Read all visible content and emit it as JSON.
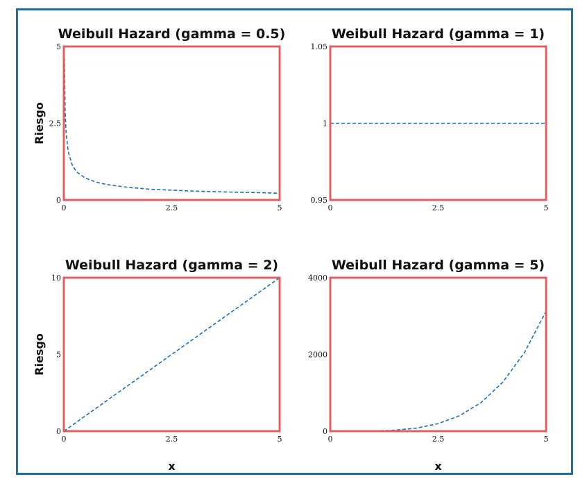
{
  "colors": {
    "frame": "#1b6fa8",
    "panel_border": "#e06060",
    "series": "#1f6fb4"
  },
  "chart_data": [
    {
      "type": "line",
      "title": "Weibull Hazard (gamma = 0.5)",
      "xlabel": "",
      "ylabel": "Riesgo",
      "xlim": [
        0,
        5
      ],
      "ylim": [
        0,
        5
      ],
      "xticks": [
        {
          "v": 0,
          "label": "0"
        },
        {
          "v": 2.5,
          "label": "2.5"
        },
        {
          "v": 5,
          "label": "5"
        }
      ],
      "yticks": [
        {
          "v": 0,
          "label": "0"
        },
        {
          "v": 2.5,
          "label": "2.5"
        },
        {
          "v": 5,
          "label": "5"
        }
      ],
      "series": [
        {
          "line_style": "dashed",
          "x": [
            0.01,
            0.03,
            0.05,
            0.1,
            0.2,
            0.3,
            0.5,
            0.75,
            1.0,
            1.5,
            2.0,
            2.5,
            3.0,
            3.5,
            4.0,
            4.5,
            5.0
          ],
          "y": [
            5.0,
            2.89,
            2.24,
            1.58,
            1.12,
            0.91,
            0.71,
            0.58,
            0.5,
            0.41,
            0.35,
            0.32,
            0.29,
            0.27,
            0.25,
            0.24,
            0.22
          ]
        }
      ]
    },
    {
      "type": "line",
      "title": "Weibull Hazard (gamma = 1)",
      "xlabel": "",
      "ylabel": "",
      "xlim": [
        0,
        5
      ],
      "ylim": [
        0.95,
        1.05
      ],
      "xticks": [
        {
          "v": 0,
          "label": "0"
        },
        {
          "v": 2.5,
          "label": "2.5"
        },
        {
          "v": 5,
          "label": "5"
        }
      ],
      "yticks": [
        {
          "v": 0.95,
          "label": "0.95"
        },
        {
          "v": 1,
          "label": "1"
        },
        {
          "v": 1.05,
          "label": "1.05"
        }
      ],
      "series": [
        {
          "line_style": "dashed",
          "x": [
            0,
            5
          ],
          "y": [
            1,
            1
          ]
        }
      ]
    },
    {
      "type": "line",
      "title": "Weibull Hazard (gamma = 2)",
      "xlabel": "x",
      "ylabel": "Riesgo",
      "xlim": [
        0,
        5
      ],
      "ylim": [
        0,
        10
      ],
      "xticks": [
        {
          "v": 0,
          "label": "0"
        },
        {
          "v": 2.5,
          "label": "2.5"
        },
        {
          "v": 5,
          "label": "5"
        }
      ],
      "yticks": [
        {
          "v": 0,
          "label": "0"
        },
        {
          "v": 5,
          "label": "5"
        },
        {
          "v": 10,
          "label": "10"
        }
      ],
      "series": [
        {
          "line_style": "dashed",
          "x": [
            0,
            5
          ],
          "y": [
            0,
            10
          ]
        }
      ]
    },
    {
      "type": "line",
      "title": "Weibull Hazard (gamma = 5)",
      "xlabel": "x",
      "ylabel": "",
      "xlim": [
        0,
        5
      ],
      "ylim": [
        0,
        4000
      ],
      "xticks": [
        {
          "v": 0,
          "label": "0"
        },
        {
          "v": 2.5,
          "label": "2.5"
        },
        {
          "v": 5,
          "label": "5"
        }
      ],
      "yticks": [
        {
          "v": 0,
          "label": "0"
        },
        {
          "v": 2000,
          "label": "2000"
        },
        {
          "v": 4000,
          "label": "4000"
        }
      ],
      "series": [
        {
          "line_style": "dashed",
          "x": [
            0,
            0.5,
            1.0,
            1.5,
            2.0,
            2.5,
            3.0,
            3.5,
            4.0,
            4.5,
            5.0
          ],
          "y": [
            0,
            0.31,
            5,
            25,
            80,
            195,
            405,
            750,
            1280,
            2050,
            3125
          ]
        }
      ]
    }
  ]
}
